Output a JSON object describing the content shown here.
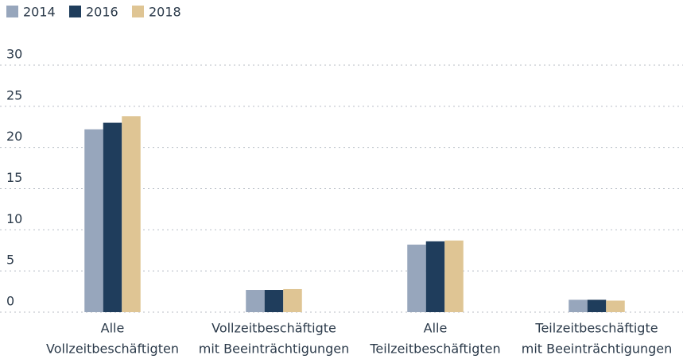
{
  "chart_data": {
    "type": "bar",
    "categories": [
      [
        "Alle",
        "Vollzeitbeschäftigten"
      ],
      [
        "Vollzeitbeschäftigte",
        "mit Beeinträchtigungen"
      ],
      [
        "Alle",
        "Teilzeitbeschäftigten"
      ],
      [
        "Teilzeitbeschäftigte",
        "mit Beeinträchtigungen"
      ]
    ],
    "series": [
      {
        "name": "2014",
        "color": "#97a6bc",
        "values": [
          22.2,
          2.7,
          8.2,
          1.5
        ]
      },
      {
        "name": "2016",
        "color": "#1f3d5c",
        "values": [
          23.0,
          2.7,
          8.6,
          1.5
        ]
      },
      {
        "name": "2018",
        "color": "#dfc594",
        "values": [
          23.8,
          2.8,
          8.7,
          1.4
        ]
      }
    ],
    "ylim": [
      0,
      30
    ],
    "yticks": [
      0,
      5,
      10,
      15,
      20,
      25,
      30
    ],
    "grid": true,
    "legend": "top-left"
  }
}
